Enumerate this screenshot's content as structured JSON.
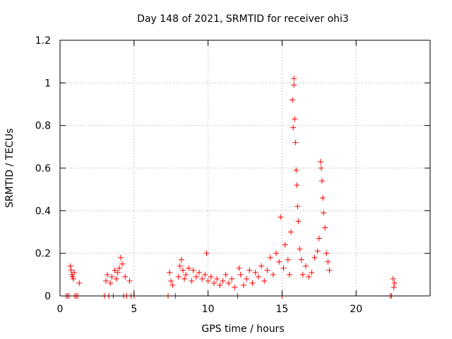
{
  "chart_data": {
    "type": "scatter",
    "title": "Day 148 of 2021, SRMTID for receiver ohi3",
    "xlabel": "GPS time / hours",
    "ylabel": "SRMTID / TECUs",
    "xlim": [
      0,
      25
    ],
    "ylim": [
      0,
      1.2
    ],
    "xticks": [
      0,
      5,
      10,
      15,
      20
    ],
    "yticks": [
      0,
      0.2,
      0.4,
      0.6,
      0.8,
      1,
      1.2
    ],
    "ytick_labels": [
      "0",
      "0.2",
      "0.4",
      "0.6",
      "0.8",
      "1",
      "1.2"
    ],
    "grid": true,
    "marker": "+",
    "color": "#ff0000",
    "series": [
      {
        "name": "ohi3",
        "x": [
          0.4,
          0.5,
          0.6,
          0.7,
          0.75,
          0.8,
          0.85,
          0.9,
          0.95,
          1.0,
          1.1,
          1.2,
          1.3,
          3.0,
          3.1,
          3.2,
          3.3,
          3.4,
          3.5,
          3.6,
          3.7,
          3.8,
          3.9,
          4.0,
          4.1,
          4.2,
          4.3,
          4.4,
          4.5,
          4.7,
          4.8,
          5.0,
          7.3,
          7.4,
          7.5,
          7.6,
          7.8,
          8.0,
          8.1,
          8.2,
          8.3,
          8.4,
          8.5,
          8.7,
          8.9,
          9.0,
          9.2,
          9.4,
          9.6,
          9.8,
          9.9,
          10.0,
          10.2,
          10.4,
          10.6,
          10.8,
          11.0,
          11.2,
          11.4,
          11.6,
          11.8,
          12.0,
          12.1,
          12.2,
          12.4,
          12.6,
          12.8,
          13.0,
          13.2,
          13.4,
          13.6,
          13.8,
          14.0,
          14.2,
          14.4,
          14.6,
          14.8,
          14.9,
          15.0,
          15.1,
          15.2,
          15.4,
          15.5,
          15.6,
          15.7,
          15.75,
          15.8,
          15.8,
          15.85,
          15.9,
          15.95,
          16.0,
          16.05,
          16.1,
          16.2,
          16.3,
          16.4,
          16.6,
          16.8,
          17.0,
          17.2,
          17.4,
          17.5,
          17.6,
          17.65,
          17.7,
          17.75,
          17.8,
          17.9,
          18.0,
          18.1,
          18.2,
          22.3,
          22.4,
          22.5,
          22.55,
          22.6
        ],
        "y": [
          0.0,
          0.0,
          0.0,
          0.14,
          0.12,
          0.1,
          0.09,
          0.08,
          0.11,
          0.0,
          0.0,
          0.0,
          0.06,
          0.0,
          0.07,
          0.1,
          0.0,
          0.06,
          0.09,
          0.0,
          0.12,
          0.08,
          0.11,
          0.13,
          0.18,
          0.15,
          0.0,
          0.09,
          0.0,
          0.07,
          0.0,
          0.0,
          0.0,
          0.11,
          0.07,
          0.05,
          0.0,
          0.09,
          0.14,
          0.17,
          0.12,
          0.08,
          0.1,
          0.13,
          0.07,
          0.12,
          0.09,
          0.11,
          0.08,
          0.1,
          0.2,
          0.07,
          0.09,
          0.06,
          0.08,
          0.05,
          0.07,
          0.1,
          0.06,
          0.08,
          0.04,
          0.0,
          0.13,
          0.1,
          0.05,
          0.08,
          0.12,
          0.06,
          0.11,
          0.09,
          0.14,
          0.07,
          0.12,
          0.18,
          0.1,
          0.2,
          0.16,
          0.37,
          0.0,
          0.13,
          0.24,
          0.17,
          0.1,
          0.3,
          0.92,
          0.79,
          1.02,
          0.99,
          0.83,
          0.72,
          0.59,
          0.52,
          0.42,
          0.35,
          0.22,
          0.17,
          0.1,
          0.14,
          0.09,
          0.11,
          0.18,
          0.21,
          0.27,
          0.63,
          0.6,
          0.54,
          0.46,
          0.39,
          0.32,
          0.2,
          0.16,
          0.12,
          0.0,
          0.0,
          0.08,
          0.04,
          0.06
        ]
      }
    ]
  }
}
